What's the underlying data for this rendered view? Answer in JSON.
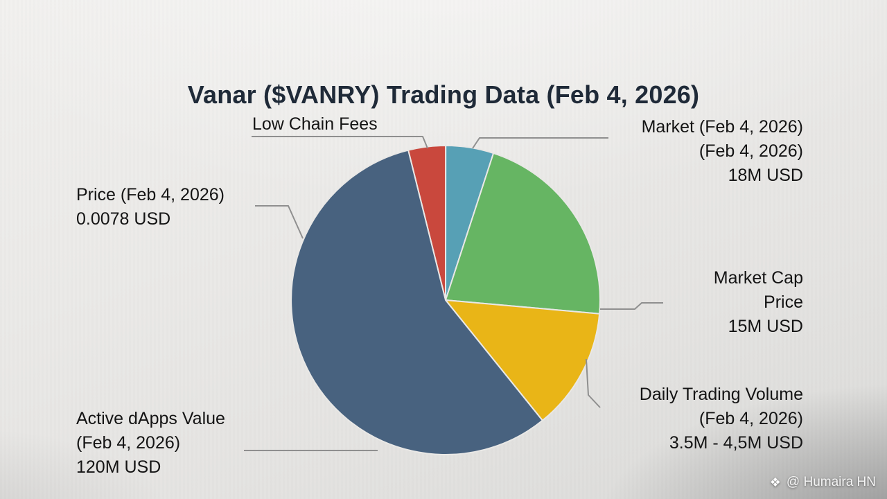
{
  "title": "Vanar ($VANRY) Trading Data (Feb 4, 2026)",
  "labels": {
    "low_chain_fees": {
      "lines": [
        "Low Chain Fees"
      ]
    },
    "market": {
      "lines": [
        "Market (Feb 4, 2026)",
        "(Feb 4, 2026)",
        "18M USD"
      ]
    },
    "price": {
      "lines": [
        "Price (Feb 4, 2026)",
        "0.0078 USD"
      ]
    },
    "market_cap": {
      "lines": [
        "Market Cap",
        "Price",
        "15M USD"
      ]
    },
    "daily_volume": {
      "lines": [
        "Daily Trading Volume",
        "(Feb 4, 2026)",
        "3.5M - 4,5M USD"
      ]
    },
    "active_dapps": {
      "lines": [
        "Active dApps Value",
        "(Feb 4, 2026)",
        "120M USD"
      ]
    }
  },
  "watermark": {
    "icon_glyph": "❖",
    "handle": "@ Humaira HN",
    "icon_name": "binance-diamond-icon"
  },
  "colors": {
    "background": "#e9e8e6",
    "title_text": "#1f2a38",
    "label_text": "#141414",
    "leader_line": "#8f8f8f",
    "slice_red": "#c9483d",
    "slice_teal": "#57a0b5",
    "slice_green": "#66b563",
    "slice_yellow": "#e9b517",
    "slice_blue": "#48627f"
  },
  "chart_data": {
    "type": "pie",
    "title": "Vanar ($VANRY) Trading Data (Feb 4, 2026)",
    "legend_position": "none",
    "start_angle_deg": 346,
    "slices": [
      {
        "label": "Low Chain Fees",
        "percent": 3.9,
        "color": "#c9483d"
      },
      {
        "label": "Market (Feb 4, 2026) (Feb 4, 2026) — 18M USD",
        "percent": 5.0,
        "color": "#57a0b5"
      },
      {
        "label": "Market Cap / Price — 15M USD",
        "percent": 21.4,
        "color": "#66b563"
      },
      {
        "label": "Daily Trading Volume (Feb 4, 2026) — 3.5M - 4,5M USD",
        "percent": 12.8,
        "color": "#e9b517"
      },
      {
        "label": "Price (Feb 4, 2026) 0.0078 USD / Active dApps Value (Feb 4, 2026) 120M USD",
        "percent": 56.9,
        "color": "#48627f"
      }
    ]
  }
}
